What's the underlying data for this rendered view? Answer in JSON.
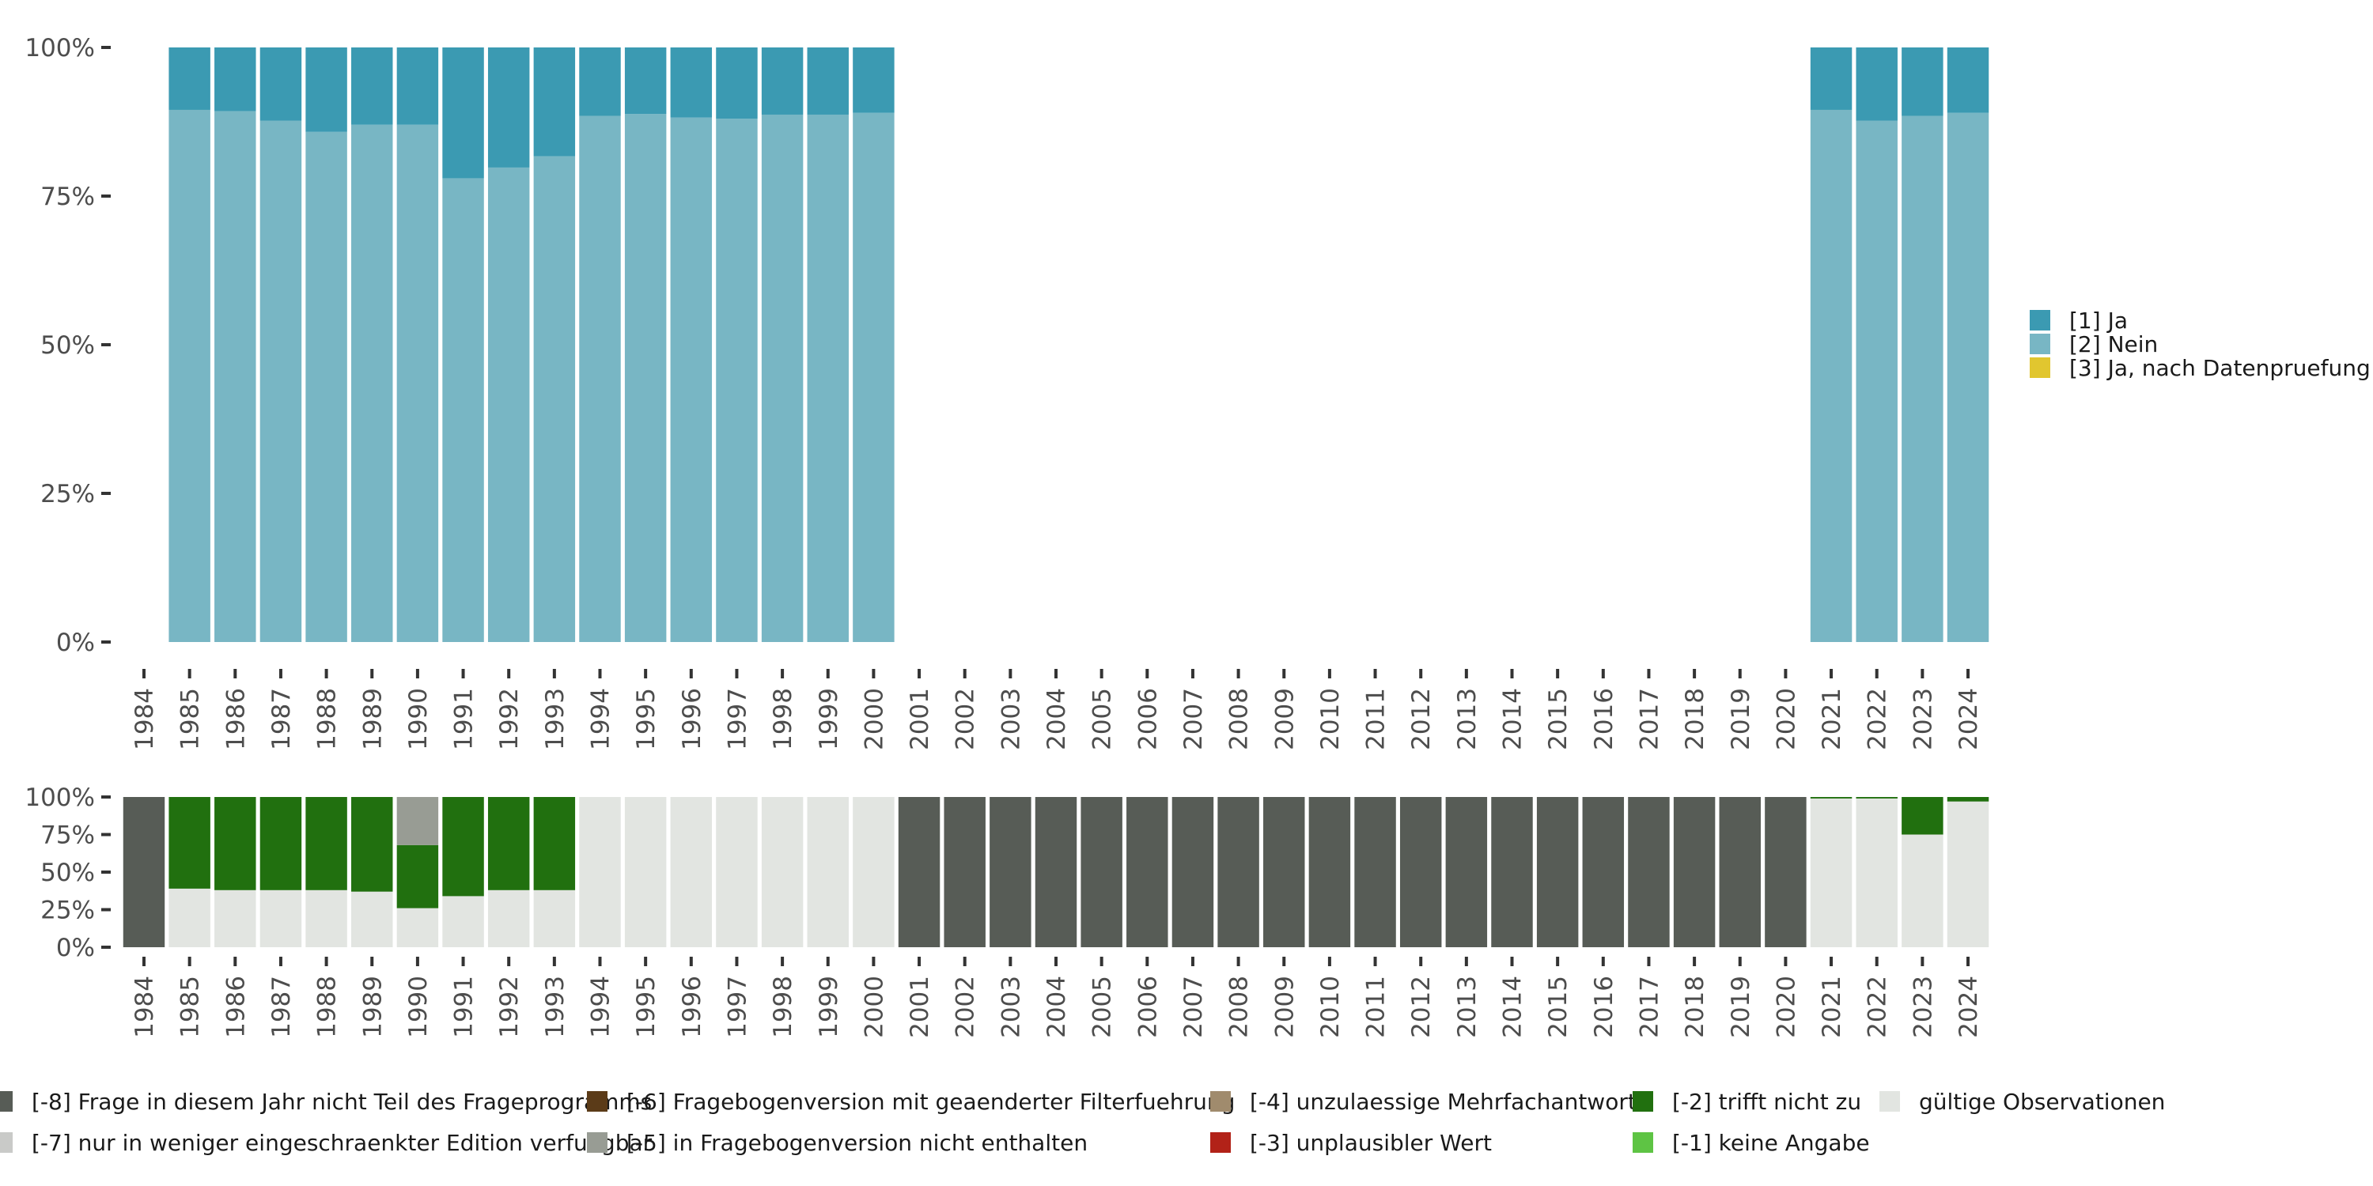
{
  "chart_data": [
    {
      "type": "bar",
      "stacked": true,
      "title": "",
      "xlabel": "",
      "ylabel": "",
      "ylim": [
        0,
        1
      ],
      "y_ticks": [
        "0%",
        "25%",
        "50%",
        "75%",
        "100%"
      ],
      "categories": [
        "1984",
        "1985",
        "1986",
        "1987",
        "1988",
        "1989",
        "1990",
        "1991",
        "1992",
        "1993",
        "1994",
        "1995",
        "1996",
        "1997",
        "1998",
        "1999",
        "2000",
        "2001",
        "2002",
        "2003",
        "2004",
        "2005",
        "2006",
        "2007",
        "2008",
        "2009",
        "2010",
        "2011",
        "2012",
        "2013",
        "2014",
        "2015",
        "2016",
        "2017",
        "2018",
        "2019",
        "2020",
        "2021",
        "2022",
        "2023",
        "2024"
      ],
      "series": [
        {
          "name": "[2] Nein",
          "color": "#78b6c4",
          "values": [
            null,
            0.895,
            0.893,
            0.877,
            0.858,
            0.87,
            0.87,
            0.78,
            0.798,
            0.817,
            0.885,
            0.888,
            0.882,
            0.88,
            0.887,
            0.887,
            0.89,
            null,
            null,
            null,
            null,
            null,
            null,
            null,
            null,
            null,
            null,
            null,
            null,
            null,
            null,
            null,
            null,
            null,
            null,
            null,
            null,
            0.895,
            0.877,
            0.885,
            0.89
          ]
        },
        {
          "name": "[1] Ja",
          "color": "#3b9ab2",
          "values": [
            null,
            0.105,
            0.107,
            0.123,
            0.142,
            0.13,
            0.13,
            0.22,
            0.202,
            0.183,
            0.115,
            0.112,
            0.118,
            0.12,
            0.113,
            0.113,
            0.11,
            null,
            null,
            null,
            null,
            null,
            null,
            null,
            null,
            null,
            null,
            null,
            null,
            null,
            null,
            null,
            null,
            null,
            null,
            null,
            null,
            0.105,
            0.123,
            0.115,
            0.11
          ]
        },
        {
          "name": "[3] Ja, nach Datenpruefung",
          "color": "#e1c62f",
          "values": [
            null,
            0,
            0,
            0,
            0,
            0,
            0,
            0,
            0,
            0,
            0,
            0,
            0,
            0,
            0,
            0,
            0,
            null,
            null,
            null,
            null,
            null,
            null,
            null,
            null,
            null,
            null,
            null,
            null,
            null,
            null,
            null,
            null,
            null,
            null,
            null,
            null,
            0,
            0,
            0,
            0
          ]
        }
      ],
      "legend": {
        "position": "right",
        "entries": [
          {
            "label": "[1] Ja",
            "color": "#3b9ab2"
          },
          {
            "label": "[2] Nein",
            "color": "#78b6c4"
          },
          {
            "label": "[3] Ja, nach Datenpruefung",
            "color": "#e1c62f"
          }
        ]
      }
    },
    {
      "type": "bar",
      "stacked": true,
      "title": "",
      "xlabel": "",
      "ylabel": "",
      "ylim": [
        0,
        1
      ],
      "y_ticks": [
        "0%",
        "25%",
        "50%",
        "75%",
        "100%"
      ],
      "categories": [
        "1984",
        "1985",
        "1986",
        "1987",
        "1988",
        "1989",
        "1990",
        "1991",
        "1992",
        "1993",
        "1994",
        "1995",
        "1996",
        "1997",
        "1998",
        "1999",
        "2000",
        "2001",
        "2002",
        "2003",
        "2004",
        "2005",
        "2006",
        "2007",
        "2008",
        "2009",
        "2010",
        "2011",
        "2012",
        "2013",
        "2014",
        "2015",
        "2016",
        "2017",
        "2018",
        "2019",
        "2020",
        "2021",
        "2022",
        "2023",
        "2024"
      ],
      "series": [
        {
          "name": "gültige Observationen",
          "color": "#e2e5e1",
          "values": [
            0,
            0.39,
            0.38,
            0.38,
            0.38,
            0.37,
            0.26,
            0.34,
            0.38,
            0.38,
            1,
            1,
            1,
            1,
            1,
            1,
            1,
            0,
            0,
            0,
            0,
            0,
            0,
            0,
            0,
            0,
            0,
            0,
            0,
            0,
            0,
            0,
            0,
            0,
            0,
            0,
            0,
            0.99,
            0.99,
            0.75,
            0.97
          ]
        },
        {
          "name": "[-2] trifft nicht zu",
          "color": "#21700f",
          "values": [
            0,
            0.61,
            0.62,
            0.62,
            0.62,
            0.63,
            0.42,
            0.66,
            0.62,
            0.62,
            0,
            0,
            0,
            0,
            0,
            0,
            0,
            0,
            0,
            0,
            0,
            0,
            0,
            0,
            0,
            0,
            0,
            0,
            0,
            0,
            0,
            0,
            0,
            0,
            0,
            0,
            0,
            0.01,
            0.01,
            0.25,
            0.03
          ]
        },
        {
          "name": "[-5] in Fragebogenversion nicht enthalten",
          "color": "#989c94",
          "values": [
            0,
            0,
            0,
            0,
            0,
            0,
            0.32,
            0,
            0,
            0,
            0,
            0,
            0,
            0,
            0,
            0,
            0,
            0,
            0,
            0,
            0,
            0,
            0,
            0,
            0,
            0,
            0,
            0,
            0,
            0,
            0,
            0,
            0,
            0,
            0,
            0,
            0,
            0,
            0,
            0,
            0
          ]
        },
        {
          "name": "[-8] Frage in diesem Jahr nicht Teil des Frageprogramms",
          "color": "#575c56",
          "values": [
            1,
            0,
            0,
            0,
            0,
            0,
            0,
            0,
            0,
            0,
            0,
            0,
            0,
            0,
            0,
            0,
            0,
            1,
            1,
            1,
            1,
            1,
            1,
            1,
            1,
            1,
            1,
            1,
            1,
            1,
            1,
            1,
            1,
            1,
            1,
            1,
            1,
            0,
            0,
            0,
            0
          ]
        }
      ],
      "legend": {
        "position": "bottom",
        "entries": [
          {
            "label": "[-8] Frage in diesem Jahr nicht Teil des Frageprogramms",
            "color": "#575c56"
          },
          {
            "label": "[-7] nur in weniger eingeschraenkter Edition verfuegbar",
            "color": "#c9cac8"
          },
          {
            "label": "[-6] Fragebogenversion mit geaenderter Filterfuehrung",
            "color": "#5b3b18"
          },
          {
            "label": "[-5] in Fragebogenversion nicht enthalten",
            "color": "#989c94"
          },
          {
            "label": "[-4] unzulaessige Mehrfachantwort",
            "color": "#a08b6d"
          },
          {
            "label": "[-3] unplausibler Wert",
            "color": "#b22218"
          },
          {
            "label": "[-2] trifft nicht zu",
            "color": "#21700f"
          },
          {
            "label": "[-1] keine Angabe",
            "color": "#5ec444"
          },
          {
            "label": "gültige Observationen",
            "color": "#e2e5e1"
          }
        ]
      }
    }
  ]
}
